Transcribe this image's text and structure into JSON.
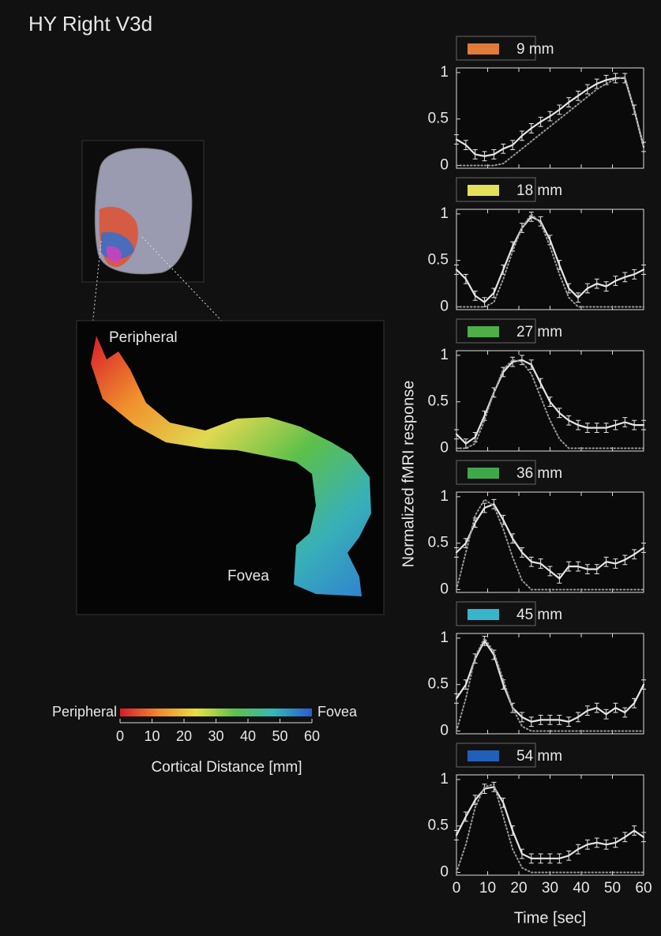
{
  "title": "HY Right V3d",
  "surface_labels": [
    "Peripheral",
    "Fovea"
  ],
  "colorbar": {
    "left_label": "Peripheral",
    "right_label": "Fovea",
    "xlim": [
      0,
      60
    ],
    "xticks": [
      0,
      10,
      20,
      30,
      40,
      50,
      60
    ],
    "x_label": "Cortical Distance [mm]",
    "colors": [
      "#d81c2c",
      "#f08a2c",
      "#e8e040",
      "#5cc04a",
      "#34b8b8",
      "#2a5ad0"
    ]
  },
  "y_label": "Normalized fMRI response",
  "chart_data": [
    {
      "type": "line",
      "title": "9 mm",
      "color": "#e07b3a",
      "x": [
        0,
        3,
        6,
        9,
        12,
        15,
        18,
        21,
        24,
        27,
        30,
        33,
        36,
        39,
        42,
        45,
        48,
        51,
        54,
        57,
        60
      ],
      "series": [
        {
          "color": "#e6e6e6",
          "error": 0.05,
          "values": [
            0.28,
            0.22,
            0.12,
            0.1,
            0.12,
            0.18,
            0.22,
            0.32,
            0.4,
            0.47,
            0.53,
            0.6,
            0.68,
            0.75,
            0.82,
            0.88,
            0.92,
            0.94,
            0.94,
            0.6,
            0.2
          ]
        },
        {
          "color": "#9a9a9a",
          "style": "dotted",
          "values": [
            0,
            0,
            0,
            0,
            0,
            0.02,
            0.1,
            0.18,
            0.26,
            0.34,
            0.42,
            0.5,
            0.58,
            0.66,
            0.74,
            0.82,
            0.88,
            0.93,
            0.95,
            0.6,
            0.2
          ]
        }
      ],
      "xlim": [
        0,
        60
      ],
      "xticks": [
        0,
        10,
        20,
        30,
        40,
        50,
        60
      ],
      "ylim": [
        -0.03,
        1.05
      ],
      "yticks": [
        0,
        0.5,
        1
      ],
      "x_tick_labels": false
    },
    {
      "type": "line",
      "title": "18 mm",
      "color": "#e4e05a",
      "x": [
        0,
        3,
        6,
        9,
        12,
        15,
        18,
        21,
        24,
        27,
        30,
        33,
        36,
        39,
        42,
        45,
        48,
        51,
        54,
        57,
        60
      ],
      "series": [
        {
          "color": "#e6e6e6",
          "error": 0.05,
          "values": [
            0.4,
            0.3,
            0.12,
            0.05,
            0.15,
            0.4,
            0.65,
            0.85,
            0.97,
            0.92,
            0.72,
            0.45,
            0.2,
            0.1,
            0.2,
            0.25,
            0.22,
            0.28,
            0.32,
            0.35,
            0.4
          ]
        },
        {
          "color": "#9a9a9a",
          "style": "dotted",
          "values": [
            0,
            0,
            0,
            0,
            0.05,
            0.3,
            0.6,
            0.85,
            1.0,
            0.9,
            0.65,
            0.35,
            0.1,
            0,
            0,
            0,
            0,
            0,
            0,
            0,
            0
          ]
        }
      ],
      "xlim": [
        0,
        60
      ],
      "xticks": [
        0,
        10,
        20,
        30,
        40,
        50,
        60
      ],
      "ylim": [
        -0.03,
        1.05
      ],
      "yticks": [
        0,
        0.5,
        1
      ],
      "x_tick_labels": false
    },
    {
      "type": "line",
      "title": "27 mm",
      "color": "#4caf48",
      "x": [
        0,
        3,
        6,
        9,
        12,
        15,
        18,
        21,
        24,
        27,
        30,
        33,
        36,
        39,
        42,
        45,
        48,
        51,
        54,
        57,
        60
      ],
      "series": [
        {
          "color": "#e6e6e6",
          "error": 0.05,
          "values": [
            0.15,
            0.05,
            0.12,
            0.35,
            0.6,
            0.82,
            0.93,
            0.95,
            0.9,
            0.7,
            0.5,
            0.38,
            0.3,
            0.25,
            0.22,
            0.22,
            0.22,
            0.25,
            0.28,
            0.25,
            0.25
          ]
        },
        {
          "color": "#9a9a9a",
          "style": "dotted",
          "values": [
            0,
            0,
            0.05,
            0.3,
            0.6,
            0.85,
            0.95,
            0.93,
            0.8,
            0.55,
            0.3,
            0.1,
            0,
            0,
            0,
            0,
            0,
            0,
            0,
            0,
            0
          ]
        }
      ],
      "xlim": [
        0,
        60
      ],
      "xticks": [
        0,
        10,
        20,
        30,
        40,
        50,
        60
      ],
      "ylim": [
        -0.03,
        1.05
      ],
      "yticks": [
        0,
        0.5,
        1
      ],
      "x_tick_labels": false
    },
    {
      "type": "line",
      "title": "36 mm",
      "color": "#3fa84a",
      "x": [
        0,
        3,
        6,
        9,
        12,
        15,
        18,
        21,
        24,
        27,
        30,
        33,
        36,
        39,
        42,
        45,
        48,
        51,
        54,
        57,
        60
      ],
      "series": [
        {
          "color": "#e6e6e6",
          "error": 0.05,
          "values": [
            0.4,
            0.5,
            0.72,
            0.88,
            0.92,
            0.75,
            0.55,
            0.4,
            0.3,
            0.28,
            0.2,
            0.12,
            0.25,
            0.25,
            0.22,
            0.22,
            0.3,
            0.28,
            0.32,
            0.38,
            0.45
          ]
        },
        {
          "color": "#9a9a9a",
          "style": "dotted",
          "values": [
            0,
            0.4,
            0.8,
            0.97,
            0.9,
            0.65,
            0.35,
            0.1,
            0,
            0,
            0,
            0,
            0,
            0,
            0,
            0,
            0,
            0,
            0,
            0,
            0
          ]
        }
      ],
      "xlim": [
        0,
        60
      ],
      "xticks": [
        0,
        10,
        20,
        30,
        40,
        50,
        60
      ],
      "ylim": [
        -0.03,
        1.05
      ],
      "yticks": [
        0,
        0.5,
        1
      ],
      "x_tick_labels": false
    },
    {
      "type": "line",
      "title": "45 mm",
      "color": "#38b4cc",
      "x": [
        0,
        3,
        6,
        9,
        12,
        15,
        18,
        21,
        24,
        27,
        30,
        33,
        36,
        39,
        42,
        45,
        48,
        51,
        54,
        57,
        60
      ],
      "series": [
        {
          "color": "#e6e6e6",
          "error": 0.05,
          "values": [
            0.35,
            0.5,
            0.78,
            0.97,
            0.82,
            0.5,
            0.25,
            0.15,
            0.1,
            0.12,
            0.12,
            0.12,
            0.1,
            0.15,
            0.22,
            0.25,
            0.18,
            0.25,
            0.2,
            0.3,
            0.5
          ]
        },
        {
          "color": "#9a9a9a",
          "style": "dotted",
          "values": [
            0,
            0.35,
            0.8,
            1.0,
            0.85,
            0.55,
            0.25,
            0.05,
            0,
            0,
            0,
            0,
            0,
            0,
            0,
            0,
            0,
            0,
            0,
            0,
            0
          ]
        }
      ],
      "xlim": [
        0,
        60
      ],
      "xticks": [
        0,
        10,
        20,
        30,
        40,
        50,
        60
      ],
      "ylim": [
        -0.03,
        1.05
      ],
      "yticks": [
        0,
        0.5,
        1
      ],
      "x_tick_labels": false
    },
    {
      "type": "line",
      "title": "54 mm",
      "color": "#2060b8",
      "x": [
        0,
        3,
        6,
        9,
        12,
        15,
        18,
        21,
        24,
        27,
        30,
        33,
        36,
        39,
        42,
        45,
        48,
        51,
        54,
        57,
        60
      ],
      "series": [
        {
          "color": "#e6e6e6",
          "error": 0.05,
          "values": [
            0.4,
            0.6,
            0.78,
            0.9,
            0.92,
            0.75,
            0.45,
            0.2,
            0.15,
            0.15,
            0.15,
            0.15,
            0.18,
            0.25,
            0.3,
            0.32,
            0.3,
            0.32,
            0.38,
            0.45,
            0.38
          ]
        },
        {
          "color": "#9a9a9a",
          "style": "dotted",
          "values": [
            0,
            0.3,
            0.7,
            0.92,
            0.95,
            0.6,
            0.25,
            0.05,
            0,
            0,
            0,
            0,
            0,
            0,
            0,
            0,
            0,
            0,
            0,
            0,
            0
          ]
        }
      ],
      "xlim": [
        0,
        60
      ],
      "xticks": [
        0,
        10,
        20,
        30,
        40,
        50,
        60
      ],
      "ylim": [
        -0.03,
        1.05
      ],
      "yticks": [
        0,
        0.5,
        1
      ],
      "x_tick_labels": true,
      "x_label": "Time [sec]"
    }
  ]
}
